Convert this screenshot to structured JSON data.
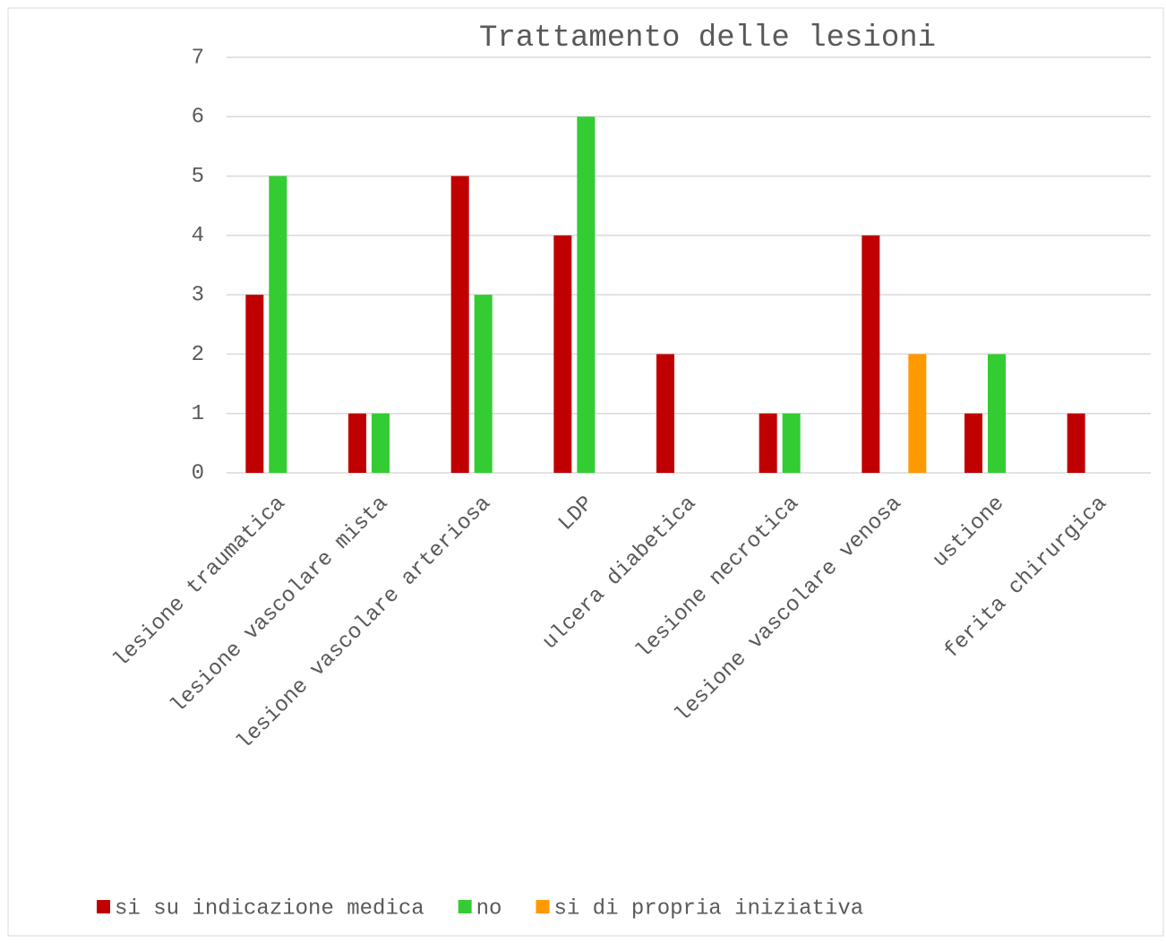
{
  "chart_data": {
    "type": "bar",
    "title": "Trattamento delle lesioni",
    "categories": [
      "lesione traumatica",
      "lesione vascolare mista",
      "lesione vascolare arteriosa",
      "LDP",
      "ulcera diabetica",
      "lesione necrotica",
      "lesione vascolare venosa",
      "ustione",
      "ferita chirurgica"
    ],
    "series": [
      {
        "name": "si su indicazione medica",
        "color": "#c00000",
        "values": [
          3,
          1,
          5,
          4,
          2,
          1,
          4,
          1,
          1
        ]
      },
      {
        "name": "no",
        "color": "#33cc33",
        "values": [
          5,
          1,
          3,
          6,
          null,
          1,
          null,
          2,
          null
        ]
      },
      {
        "name": "si di propria iniziativa",
        "color": "#ff9900",
        "values": [
          null,
          null,
          null,
          null,
          null,
          null,
          2,
          null,
          null
        ]
      }
    ],
    "ylim": [
      0,
      7
    ],
    "yticks": [
      0,
      1,
      2,
      3,
      4,
      5,
      6,
      7
    ],
    "grid": true,
    "legend": "bottom"
  }
}
